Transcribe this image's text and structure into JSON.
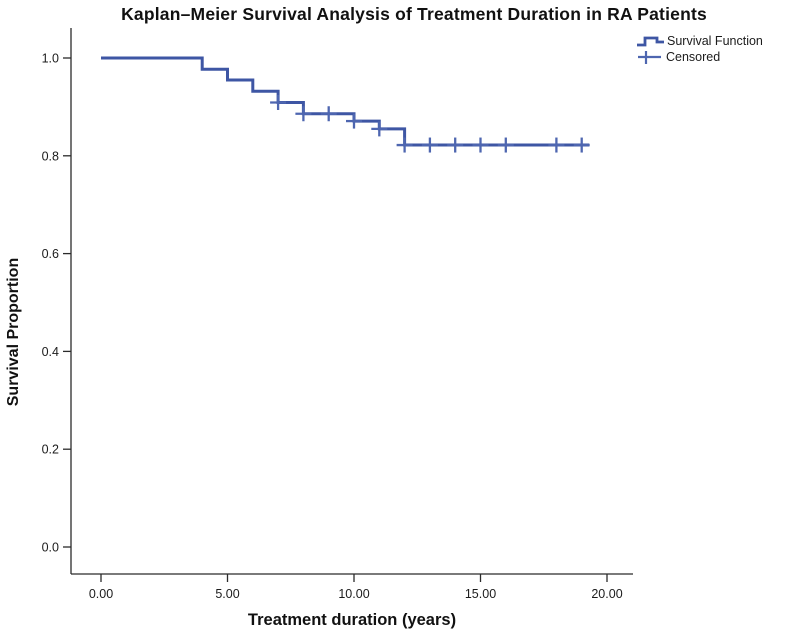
{
  "chart_data": {
    "type": "line",
    "variant": "kaplan_meier_step",
    "title": "Kaplan–Meier Survival Analysis of Treatment Duration in RA Patients",
    "xlabel": "Treatment duration (years)",
    "ylabel": "Survival Proportion",
    "xlim": [
      0,
      20
    ],
    "ylim": [
      0,
      1
    ],
    "grid": false,
    "legend_position": "top-right",
    "x_ticks": [
      {
        "value": 0,
        "label": "0.00"
      },
      {
        "value": 5,
        "label": "5.00"
      },
      {
        "value": 10,
        "label": "10.00"
      },
      {
        "value": 15,
        "label": "15.00"
      },
      {
        "value": 20,
        "label": "20.00"
      }
    ],
    "y_ticks": [
      {
        "value": 0.0,
        "label": "0.0"
      },
      {
        "value": 0.2,
        "label": "0.2"
      },
      {
        "value": 0.4,
        "label": "0.4"
      },
      {
        "value": 0.6,
        "label": "0.6"
      },
      {
        "value": 0.8,
        "label": "0.8"
      },
      {
        "value": 1.0,
        "label": "1.0"
      }
    ],
    "series": [
      {
        "name": "Survival Function",
        "type": "step",
        "color": "#3e56a4",
        "points": [
          [
            0,
            1.0
          ],
          [
            4,
            1.0
          ],
          [
            4,
            0.977
          ],
          [
            5,
            0.977
          ],
          [
            5,
            0.955
          ],
          [
            6,
            0.955
          ],
          [
            6,
            0.932
          ],
          [
            7,
            0.932
          ],
          [
            7,
            0.909
          ],
          [
            8,
            0.909
          ],
          [
            8,
            0.886
          ],
          [
            10,
            0.886
          ],
          [
            10,
            0.871
          ],
          [
            11,
            0.871
          ],
          [
            11,
            0.855
          ],
          [
            12,
            0.855
          ],
          [
            12,
            0.822
          ],
          [
            19.3,
            0.822
          ]
        ]
      },
      {
        "name": "Censored",
        "type": "plus_marker",
        "color": "#4e66b0",
        "points": [
          [
            7,
            0.909
          ],
          [
            8,
            0.886
          ],
          [
            9,
            0.886
          ],
          [
            10,
            0.871
          ],
          [
            11,
            0.855
          ],
          [
            12,
            0.822
          ],
          [
            13,
            0.822
          ],
          [
            14,
            0.822
          ],
          [
            15,
            0.822
          ],
          [
            16,
            0.822
          ],
          [
            18,
            0.822
          ],
          [
            19,
            0.822
          ]
        ]
      }
    ]
  }
}
